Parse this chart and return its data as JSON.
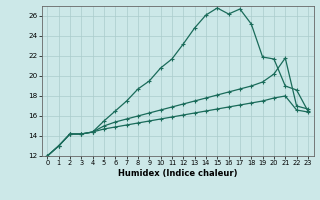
{
  "xlabel": "Humidex (Indice chaleur)",
  "background_color": "#cce8e8",
  "grid_color": "#aacccc",
  "line_color": "#1a6b5a",
  "xlim": [
    -0.5,
    23.5
  ],
  "ylim": [
    12,
    27
  ],
  "xticks": [
    0,
    1,
    2,
    3,
    4,
    5,
    6,
    7,
    8,
    9,
    10,
    11,
    12,
    13,
    14,
    15,
    16,
    17,
    18,
    19,
    20,
    21,
    22,
    23
  ],
  "yticks": [
    12,
    14,
    16,
    18,
    20,
    22,
    24,
    26
  ],
  "curve1_x": [
    0,
    1,
    2,
    3,
    4,
    5,
    6,
    7,
    8,
    9,
    10,
    11,
    12,
    13,
    14,
    15,
    16,
    17,
    18,
    19,
    20,
    21,
    22,
    23
  ],
  "curve1_y": [
    12,
    13,
    14.2,
    14.2,
    14.4,
    15.5,
    16.5,
    17.5,
    18.7,
    19.5,
    20.8,
    21.7,
    23.2,
    24.8,
    26.1,
    26.8,
    26.2,
    26.7,
    25.2,
    21.9,
    21.7,
    19.0,
    18.6,
    16.5
  ],
  "curve2_x": [
    0,
    1,
    2,
    3,
    4,
    5,
    6,
    7,
    8,
    9,
    10,
    11,
    12,
    13,
    14,
    15,
    16,
    17,
    18,
    19,
    20,
    21,
    22,
    23
  ],
  "curve2_y": [
    12,
    13,
    14.2,
    14.2,
    14.4,
    15.0,
    15.4,
    15.7,
    16.0,
    16.3,
    16.6,
    16.9,
    17.2,
    17.5,
    17.8,
    18.1,
    18.4,
    18.7,
    19.0,
    19.4,
    20.2,
    21.8,
    17.0,
    16.7
  ],
  "curve3_x": [
    0,
    1,
    2,
    3,
    4,
    5,
    6,
    7,
    8,
    9,
    10,
    11,
    12,
    13,
    14,
    15,
    16,
    17,
    18,
    19,
    20,
    21,
    22,
    23
  ],
  "curve3_y": [
    12,
    13,
    14.2,
    14.2,
    14.4,
    14.7,
    14.9,
    15.1,
    15.3,
    15.5,
    15.7,
    15.9,
    16.1,
    16.3,
    16.5,
    16.7,
    16.9,
    17.1,
    17.3,
    17.5,
    17.8,
    18.0,
    16.6,
    16.4
  ]
}
